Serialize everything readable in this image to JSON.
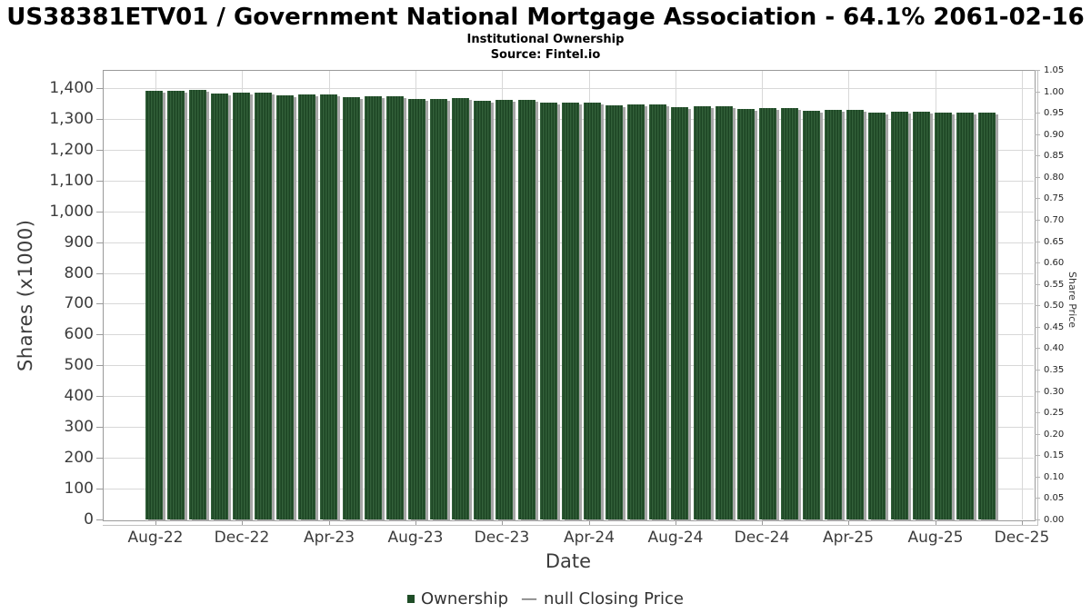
{
  "header": {
    "title": "US38381ETV01 / Government National Mortgage Association - 64.1% 2061-02-16",
    "subtitle": "Institutional Ownership",
    "source": "Source: Fintel.io"
  },
  "axes": {
    "left": {
      "label": "Shares (x1000)",
      "tick_labels": [
        "0",
        "100",
        "200",
        "300",
        "400",
        "500",
        "600",
        "700",
        "800",
        "900",
        "1,000",
        "1,100",
        "1,200",
        "1,300",
        "1,400"
      ]
    },
    "right": {
      "label": "Share Price",
      "tick_labels": [
        "0.00",
        "0.05",
        "0.10",
        "0.15",
        "0.20",
        "0.25",
        "0.30",
        "0.35",
        "0.40",
        "0.45",
        "0.50",
        "0.55",
        "0.60",
        "0.65",
        "0.70",
        "0.75",
        "0.80",
        "0.85",
        "0.90",
        "0.95",
        "1.00",
        "1.05"
      ]
    },
    "x": {
      "label": "Date",
      "tick_labels": [
        "Aug-22",
        "Dec-22",
        "Apr-23",
        "Aug-23",
        "Dec-23",
        "Apr-24",
        "Aug-24",
        "Dec-24",
        "Apr-25",
        "Aug-25",
        "Dec-25"
      ]
    }
  },
  "legend": {
    "ownership_label": "Ownership",
    "price_marker": "—",
    "price_label": "null Closing Price"
  },
  "colors": {
    "bar_green_light": "#33603a",
    "bar_green_mid": "#26522d",
    "bar_green_dark": "#1c4423",
    "bar_shadow": "#a6a6a6",
    "legend_swatch": "#1f4d27",
    "grid": "#d8d8d8",
    "axis_line": "#9a9a9a",
    "tick_text": "#3c3c3c",
    "title_text": "#000000"
  },
  "chart_data": {
    "type": "bar",
    "title": "US38381ETV01 / Government National Mortgage Association - 64.1% 2061-02-16",
    "subtitle": "Institutional Ownership",
    "source": "Source: Fintel.io",
    "xlabel": "Date",
    "ylabel": "Shares (x1000)",
    "y2label": "Share Price",
    "ylim": [
      0,
      1400
    ],
    "y2lim": [
      0,
      1.05
    ],
    "grid": true,
    "legend_position": "bottom",
    "x": [
      "Aug-22",
      "Sep-22",
      "Oct-22",
      "Nov-22",
      "Dec-22",
      "Jan-23",
      "Feb-23",
      "Mar-23",
      "Apr-23",
      "May-23",
      "Jun-23",
      "Jul-23",
      "Aug-23",
      "Sep-23",
      "Oct-23",
      "Nov-23",
      "Dec-23",
      "Jan-24",
      "Feb-24",
      "Mar-24",
      "Apr-24",
      "May-24",
      "Jun-24",
      "Jul-24",
      "Aug-24",
      "Sep-24",
      "Oct-24",
      "Nov-24",
      "Dec-24",
      "Jan-25",
      "Feb-25",
      "Mar-25",
      "Apr-25",
      "May-25",
      "Jun-25",
      "Jul-25",
      "Aug-25",
      "Sep-25",
      "Oct-25"
    ],
    "series": [
      {
        "name": "Ownership",
        "type": "bar",
        "axis": "left",
        "values": [
          1390,
          1392,
          1393,
          1382,
          1384,
          1385,
          1376,
          1378,
          1379,
          1370,
          1372,
          1373,
          1364,
          1366,
          1367,
          1359,
          1361,
          1361,
          1352,
          1354,
          1352,
          1345,
          1347,
          1348,
          1339,
          1340,
          1341,
          1332,
          1334,
          1335,
          1326,
          1328,
          1328,
          1321,
          1323,
          1323,
          1320,
          1320,
          1321
        ]
      },
      {
        "name": "null Closing Price",
        "type": "line",
        "axis": "right",
        "values": []
      }
    ]
  }
}
